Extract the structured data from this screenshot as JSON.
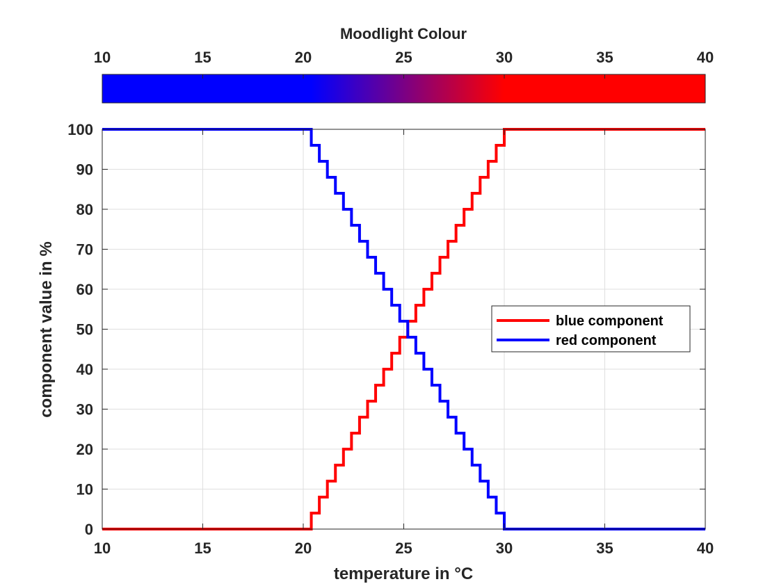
{
  "chart_data": {
    "type": "line",
    "xlabel": "temperature in °C",
    "ylabel": "component value in %",
    "xlim": [
      10,
      40
    ],
    "ylim": [
      0,
      100
    ],
    "xticks": [
      10,
      15,
      20,
      25,
      30,
      35,
      40
    ],
    "yticks": [
      0,
      10,
      20,
      30,
      40,
      50,
      60,
      70,
      80,
      90,
      100
    ],
    "grid": true,
    "legend_position": "right",
    "colorbar": {
      "title": "Moodlight Colour",
      "ticks": [
        10,
        15,
        20,
        25,
        30,
        35,
        40
      ],
      "range": [
        10,
        40
      ],
      "low_color": "#0000ff",
      "high_color": "#ff0000",
      "transition_start": 20.4,
      "transition_end": 30
    },
    "series": [
      {
        "name": "blue component",
        "color": "#ff0000",
        "step": "post",
        "x": [
          10,
          20.4,
          20.8,
          21.2,
          21.6,
          22.0,
          22.4,
          22.8,
          23.2,
          23.6,
          24.0,
          24.4,
          24.8,
          25.2,
          25.6,
          26.0,
          26.4,
          26.8,
          27.2,
          27.6,
          28.0,
          28.4,
          28.8,
          29.2,
          29.6,
          30.0,
          40
        ],
        "y": [
          0,
          4,
          8,
          12,
          16,
          20,
          24,
          28,
          32,
          36,
          40,
          44,
          48,
          52,
          56,
          60,
          64,
          68,
          72,
          76,
          80,
          84,
          88,
          92,
          96,
          100,
          100
        ]
      },
      {
        "name": "red component",
        "color": "#0000ff",
        "step": "post",
        "x": [
          10,
          20.4,
          20.8,
          21.2,
          21.6,
          22.0,
          22.4,
          22.8,
          23.2,
          23.6,
          24.0,
          24.4,
          24.8,
          25.2,
          25.6,
          26.0,
          26.4,
          26.8,
          27.2,
          27.6,
          28.0,
          28.4,
          28.8,
          29.2,
          29.6,
          30.0,
          40
        ],
        "y": [
          100,
          96,
          92,
          88,
          84,
          80,
          76,
          72,
          68,
          64,
          60,
          56,
          52,
          48,
          44,
          40,
          36,
          32,
          28,
          24,
          20,
          16,
          12,
          8,
          4,
          0,
          0
        ]
      }
    ]
  }
}
